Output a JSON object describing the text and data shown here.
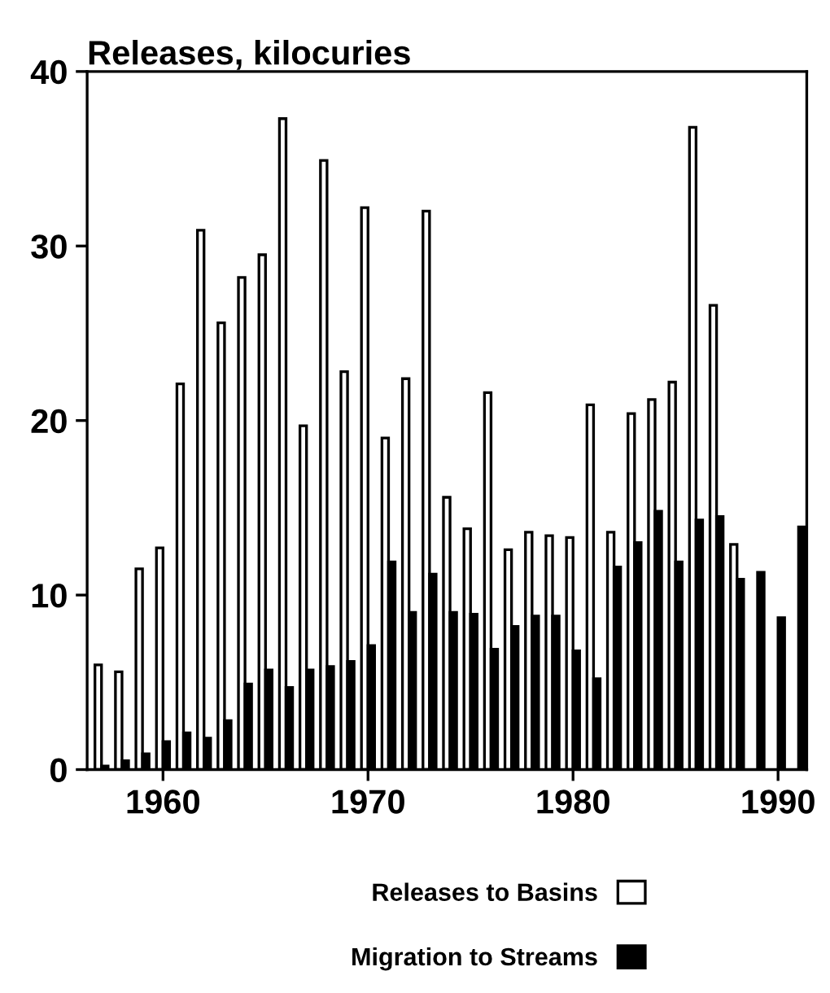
{
  "chart_data": {
    "type": "bar",
    "title": "Releases, kilocuries",
    "x": [
      1957,
      1958,
      1959,
      1960,
      1961,
      1962,
      1963,
      1964,
      1965,
      1966,
      1967,
      1968,
      1969,
      1970,
      1971,
      1972,
      1973,
      1974,
      1975,
      1976,
      1977,
      1978,
      1979,
      1980,
      1981,
      1982,
      1983,
      1984,
      1985,
      1986,
      1987,
      1988,
      1989,
      1990,
      1991
    ],
    "series": [
      {
        "name": "Releases to Basins",
        "color": "#ffffff",
        "values": [
          6.0,
          5.6,
          11.5,
          12.7,
          22.1,
          30.9,
          25.6,
          28.2,
          29.5,
          37.3,
          19.7,
          34.9,
          22.8,
          32.2,
          19.0,
          22.4,
          32.0,
          15.6,
          13.8,
          21.6,
          12.6,
          13.6,
          13.4,
          13.3,
          20.9,
          13.6,
          20.4,
          21.2,
          22.2,
          36.8,
          26.6,
          12.9,
          null,
          null,
          null
        ]
      },
      {
        "name": "Migration to Streams",
        "color": "#000000",
        "values": [
          0.2,
          0.5,
          0.9,
          1.6,
          2.1,
          1.8,
          2.8,
          4.9,
          5.7,
          4.7,
          5.7,
          5.9,
          6.2,
          7.1,
          11.9,
          9.0,
          11.2,
          9.0,
          8.9,
          6.9,
          8.2,
          8.8,
          8.8,
          6.8,
          5.2,
          11.6,
          13.0,
          14.8,
          11.9,
          14.3,
          14.5,
          10.9,
          11.3,
          8.7,
          13.9
        ]
      }
    ],
    "xlim": [
      1956.3,
      1991.4
    ],
    "xticks": [
      1960,
      1970,
      1980,
      1990
    ],
    "ylim": [
      0,
      40
    ],
    "yticks": [
      0,
      10,
      20,
      30,
      40
    ],
    "legend": "bottom",
    "grid": false
  }
}
